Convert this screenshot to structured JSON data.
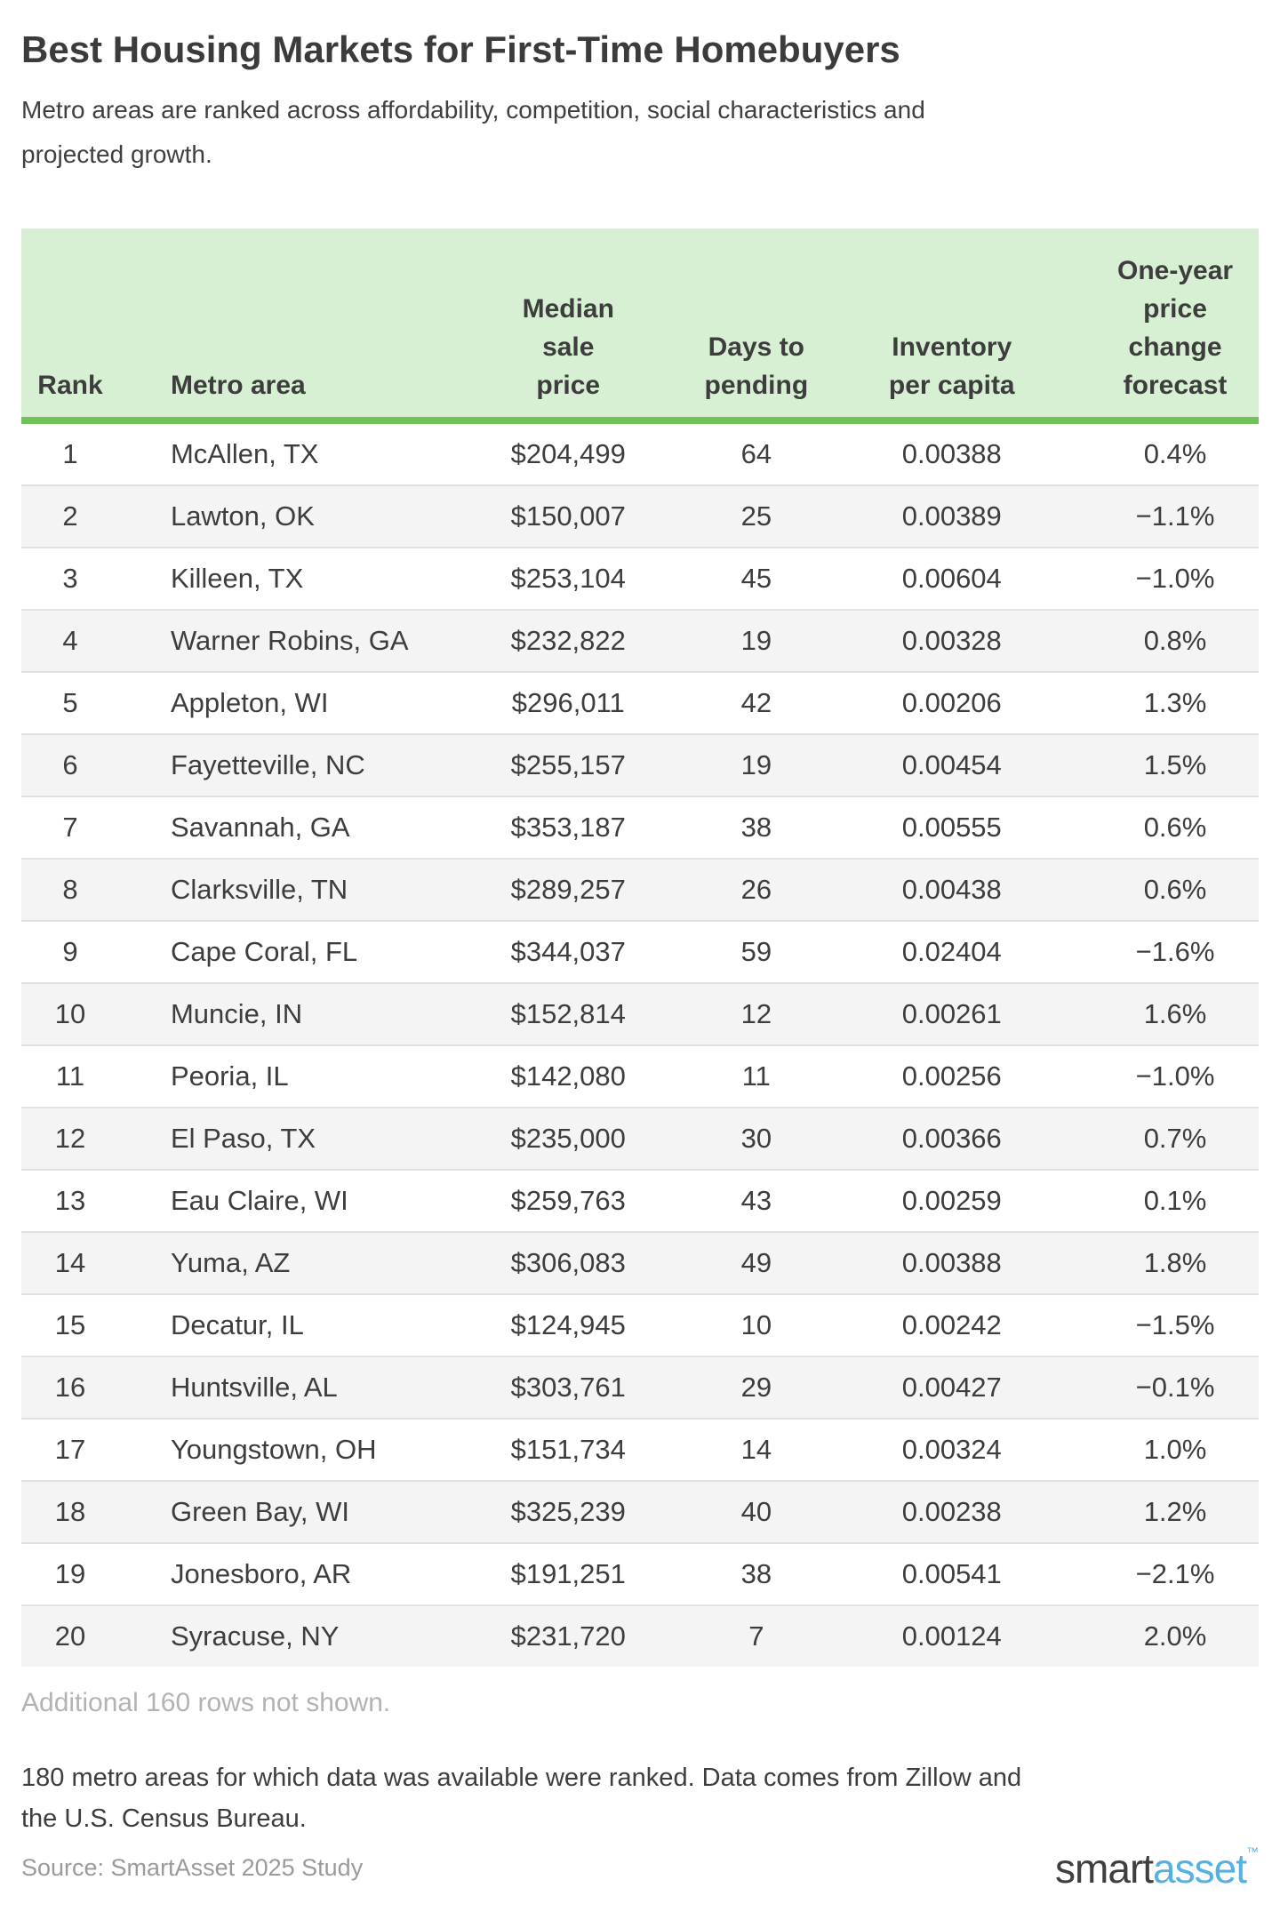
{
  "header": {
    "title": "Best Housing Markets for First-Time Homebuyers",
    "subtitle_lines": [
      "Metro areas are ranked across affordability, competition, social characteristics and",
      "projected growth."
    ]
  },
  "chart_data": {
    "type": "table",
    "title": "Best Housing Markets for First-Time Homebuyers",
    "subtitle": "Metro areas are ranked across affordability, competition, social characteristics and projected growth.",
    "columns": [
      "Rank",
      "Metro area",
      "Median sale price",
      "Days to pending",
      "Inventory per capita",
      "One-year price change forecast"
    ],
    "rows": [
      [
        "1",
        "McAllen, TX",
        "$204,499",
        "64",
        "0.00388",
        "0.4%"
      ],
      [
        "2",
        "Lawton, OK",
        "$150,007",
        "25",
        "0.00389",
        "−1.1%"
      ],
      [
        "3",
        "Killeen, TX",
        "$253,104",
        "45",
        "0.00604",
        "−1.0%"
      ],
      [
        "4",
        "Warner Robins, GA",
        "$232,822",
        "19",
        "0.00328",
        "0.8%"
      ],
      [
        "5",
        "Appleton, WI",
        "$296,011",
        "42",
        "0.00206",
        "1.3%"
      ],
      [
        "6",
        "Fayetteville, NC",
        "$255,157",
        "19",
        "0.00454",
        "1.5%"
      ],
      [
        "7",
        "Savannah, GA",
        "$353,187",
        "38",
        "0.00555",
        "0.6%"
      ],
      [
        "8",
        "Clarksville, TN",
        "$289,257",
        "26",
        "0.00438",
        "0.6%"
      ],
      [
        "9",
        "Cape Coral, FL",
        "$344,037",
        "59",
        "0.02404",
        "−1.6%"
      ],
      [
        "10",
        "Muncie, IN",
        "$152,814",
        "12",
        "0.00261",
        "1.6%"
      ],
      [
        "11",
        "Peoria, IL",
        "$142,080",
        "11",
        "0.00256",
        "−1.0%"
      ],
      [
        "12",
        "El Paso, TX",
        "$235,000",
        "30",
        "0.00366",
        "0.7%"
      ],
      [
        "13",
        "Eau Claire, WI",
        "$259,763",
        "43",
        "0.00259",
        "0.1%"
      ],
      [
        "14",
        "Yuma, AZ",
        "$306,083",
        "49",
        "0.00388",
        "1.8%"
      ],
      [
        "15",
        "Decatur, IL",
        "$124,945",
        "10",
        "0.00242",
        "−1.5%"
      ],
      [
        "16",
        "Huntsville, AL",
        "$303,761",
        "29",
        "0.00427",
        "−0.1%"
      ],
      [
        "17",
        "Youngstown, OH",
        "$151,734",
        "14",
        "0.00324",
        "1.0%"
      ],
      [
        "18",
        "Green Bay, WI",
        "$325,239",
        "40",
        "0.00238",
        "1.2%"
      ],
      [
        "19",
        "Jonesboro, AR",
        "$191,251",
        "38",
        "0.00541",
        "−2.1%"
      ],
      [
        "20",
        "Syracuse, NY",
        "$231,720",
        "7",
        "0.00124",
        "2.0%"
      ]
    ]
  },
  "table_layout": {
    "header_lines": [
      [
        "Rank"
      ],
      [
        "Metro area"
      ],
      [
        "Median",
        "sale",
        "price"
      ],
      [
        "Days to",
        "pending"
      ],
      [
        "Inventory",
        "per capita"
      ],
      [
        "One-year",
        "price",
        "change",
        "forecast"
      ]
    ],
    "cell_names": [
      "rank",
      "metro-area",
      "median-sale-price",
      "days-to-pending",
      "inventory-per-capita",
      "price-change-forecast"
    ]
  },
  "footer": {
    "additional_note": "Additional 160 rows not shown.",
    "methodology_lines": [
      "180 metro areas for which data was available were ranked. Data comes from Zillow and",
      "the U.S. Census Bureau."
    ],
    "source": "Source: SmartAsset 2025 Study",
    "logo": {
      "part1": "smart",
      "part2": "asset",
      "tm": "™"
    }
  },
  "colors": {
    "header_bg": "#d7f0d3",
    "header_border_green": "#72c25c",
    "row_alt_bg": "#f4f4f4",
    "row_divider": "#e1e1e1",
    "text": "#3d3d3d",
    "muted_note": "#b3b3b3",
    "source_text": "#9a9a9a",
    "logo_dark": "#3f3f3f",
    "logo_blue": "#54b1e4"
  }
}
